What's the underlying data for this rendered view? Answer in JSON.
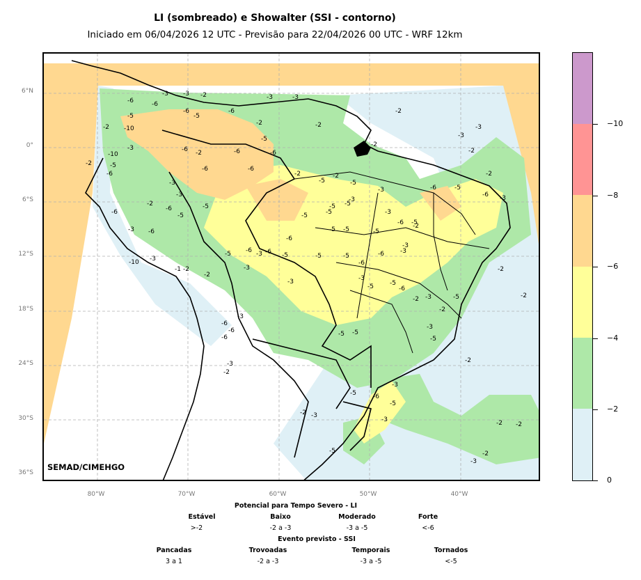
{
  "title": "LI (sombreado) e Showalter (SSI - contorno)",
  "subtitle": "Iniciado em 06/04/2026 12 UTC - Previsão para 22/04/2026 00 UTC - WRF 12km",
  "credit": "SEMAD/CIMEHGO",
  "lat_labels": [
    "6°N",
    "0°",
    "6°S",
    "12°S",
    "18°S",
    "24°S",
    "30°S",
    "36°S"
  ],
  "lon_labels": [
    "80°W",
    "70°W",
    "60°W",
    "50°W",
    "40°W"
  ],
  "colorbar": {
    "labels": [
      "0",
      "−2",
      "−4",
      "−6",
      "−8",
      "−10"
    ],
    "colors": [
      "#dff0f6",
      "#aee8a8",
      "#ffff99",
      "#ffd890",
      "#ff9494",
      "#cc99cc"
    ]
  },
  "map_colors": {
    "light_blue": "#dff0f6",
    "green": "#aee8a8",
    "yellow": "#ffff99",
    "orange": "#ffd890",
    "border": "#000000",
    "grid": "#b0b0b0"
  },
  "contour_labels": [
    "-2",
    "-3",
    "-5",
    "-6",
    "-10",
    "-1"
  ],
  "legend": {
    "li_title": "Potencial para Tempo Severo - LI",
    "li_classes": [
      {
        "name": "Estável",
        "range": ">-2"
      },
      {
        "name": "Baixo",
        "range": "-2 a -3"
      },
      {
        "name": "Moderado",
        "range": "-3 a -5"
      },
      {
        "name": "Forte",
        "range": "<-6"
      }
    ],
    "ssi_title": "Evento previsto - SSI",
    "ssi_classes": [
      {
        "name": "Pancadas",
        "range": "3 a 1"
      },
      {
        "name": "Trovoadas",
        "range": "-2 a -3"
      },
      {
        "name": "Temporais",
        "range": "-3 a -5"
      },
      {
        "name": "Tornados",
        "range": "<-5"
      }
    ]
  }
}
